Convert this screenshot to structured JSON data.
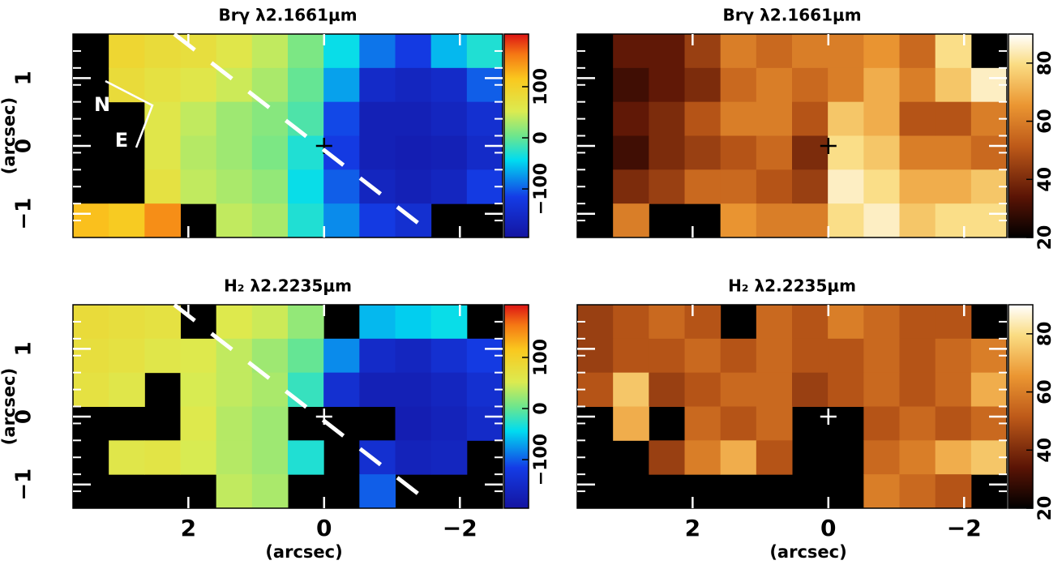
{
  "chart_data": [
    {
      "type": "heatmap",
      "title": "Brγ λ2.1661μm",
      "ylabel": "(arcsec)",
      "colormap": "jet",
      "xlim": [
        3.7,
        -2.63
      ],
      "ylim": [
        -1.35,
        1.65
      ],
      "xticks": [
        2,
        0,
        -2
      ],
      "yticks": [
        {
          "value": 1,
          "label": "1"
        },
        0,
        {
          "value": -1,
          "label": "−1"
        }
      ],
      "clim": [
        -195,
        203
      ],
      "cticks": [
        100,
        0,
        {
          "value": -100,
          "label": "−100"
        }
      ],
      "annotations": [
        "N",
        "E"
      ],
      "z": [
        [
          null,
          90,
          80,
          75,
          60,
          40,
          10,
          -40,
          -90,
          -120,
          -60,
          -30
        ],
        [
          null,
          80,
          70,
          60,
          45,
          30,
          0,
          -70,
          -150,
          -160,
          -150,
          -100
        ],
        [
          null,
          null,
          60,
          40,
          25,
          15,
          -10,
          -110,
          -170,
          -170,
          -160,
          -140
        ],
        [
          null,
          null,
          60,
          35,
          25,
          10,
          -30,
          -120,
          -170,
          -175,
          -170,
          -150
        ],
        [
          null,
          null,
          70,
          40,
          30,
          20,
          -40,
          -100,
          -160,
          -170,
          -160,
          -120
        ],
        [
          120,
          110,
          150,
          null,
          40,
          30,
          -30,
          -80,
          -120,
          -140,
          null,
          null
        ]
      ]
    },
    {
      "type": "heatmap",
      "title": "Brγ λ2.1661μm",
      "colormap": "heat",
      "xlim": [
        3.7,
        -2.63
      ],
      "ylim": [
        -1.35,
        1.65
      ],
      "xticks": [
        2,
        0,
        -2
      ],
      "yticks": [
        1,
        0,
        -1
      ],
      "clim": [
        20,
        90
      ],
      "cticks": [
        80,
        60,
        40,
        20
      ],
      "z": [
        [
          null,
          35,
          35,
          45,
          60,
          55,
          60,
          60,
          65,
          55,
          80,
          null
        ],
        [
          null,
          30,
          35,
          40,
          55,
          60,
          55,
          60,
          70,
          60,
          75,
          85
        ],
        [
          null,
          35,
          40,
          50,
          60,
          60,
          50,
          75,
          70,
          50,
          50,
          60
        ],
        [
          null,
          30,
          40,
          45,
          50,
          55,
          40,
          80,
          75,
          60,
          60,
          55
        ],
        [
          null,
          40,
          45,
          55,
          55,
          50,
          45,
          85,
          80,
          70,
          70,
          75
        ],
        [
          null,
          60,
          null,
          null,
          65,
          60,
          60,
          80,
          85,
          75,
          80,
          80
        ]
      ]
    },
    {
      "type": "heatmap",
      "title": "H₂ λ2.2235μm",
      "xlabel": "(arcsec)",
      "ylabel": "(arcsec)",
      "colormap": "jet",
      "xlim": [
        3.7,
        -2.63
      ],
      "ylim": [
        -1.35,
        1.65
      ],
      "xticks": [
        2,
        0,
        {
          "value": -2,
          "label": "−2"
        }
      ],
      "yticks": [
        {
          "value": 1,
          "label": "1"
        },
        0,
        {
          "value": -1,
          "label": "−1"
        }
      ],
      "clim": [
        -195,
        203
      ],
      "cticks": [
        100,
        0,
        {
          "value": -100,
          "label": "−100"
        }
      ],
      "z": [
        [
          80,
          75,
          70,
          null,
          55,
          45,
          20,
          null,
          -60,
          -50,
          -40,
          null
        ],
        [
          75,
          70,
          60,
          55,
          40,
          25,
          0,
          -80,
          -150,
          -160,
          -140,
          -120
        ],
        [
          70,
          60,
          null,
          50,
          40,
          30,
          -20,
          -140,
          -170,
          -170,
          -160,
          -140
        ],
        [
          null,
          null,
          null,
          55,
          35,
          25,
          null,
          null,
          null,
          -175,
          -165,
          -150
        ],
        [
          null,
          60,
          65,
          50,
          35,
          25,
          -30,
          null,
          -140,
          -165,
          -160,
          null
        ],
        [
          null,
          null,
          null,
          null,
          40,
          30,
          null,
          null,
          -100,
          null,
          null,
          null
        ]
      ]
    },
    {
      "type": "heatmap",
      "title": "H₂ λ2.2235μm",
      "xlabel": "(arcsec)",
      "colormap": "heat",
      "xlim": [
        3.7,
        -2.63
      ],
      "ylim": [
        -1.35,
        1.65
      ],
      "xticks": [
        2,
        0,
        {
          "value": -2,
          "label": "−2"
        }
      ],
      "yticks": [
        1,
        0,
        -1
      ],
      "clim": [
        20,
        90
      ],
      "cticks": [
        80,
        60,
        40,
        20
      ],
      "z": [
        [
          45,
          50,
          55,
          50,
          null,
          55,
          50,
          60,
          55,
          50,
          50,
          null
        ],
        [
          45,
          50,
          50,
          55,
          50,
          55,
          50,
          50,
          55,
          50,
          55,
          60
        ],
        [
          50,
          75,
          45,
          50,
          55,
          55,
          45,
          50,
          55,
          50,
          55,
          70
        ],
        [
          null,
          70,
          null,
          55,
          50,
          55,
          null,
          null,
          50,
          55,
          50,
          55
        ],
        [
          null,
          null,
          45,
          60,
          70,
          50,
          null,
          null,
          55,
          60,
          70,
          75
        ],
        [
          null,
          null,
          null,
          null,
          null,
          null,
          null,
          null,
          60,
          55,
          50,
          null
        ]
      ]
    }
  ]
}
